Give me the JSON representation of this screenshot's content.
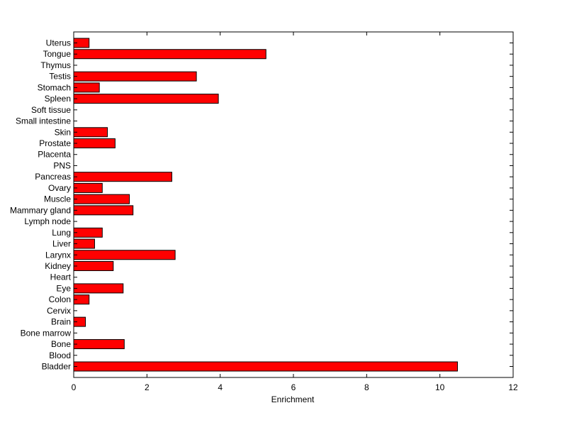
{
  "chart_data": {
    "type": "bar",
    "orientation": "horizontal",
    "categories": [
      "Uterus",
      "Tongue",
      "Thymus",
      "Testis",
      "Stomach",
      "Spleen",
      "Soft tissue",
      "Small intestine",
      "Skin",
      "Prostate",
      "Placenta",
      "PNS",
      "Pancreas",
      "Ovary",
      "Muscle",
      "Mammary gland",
      "Lymph node",
      "Lung",
      "Liver",
      "Larynx",
      "Kidney",
      "Heart",
      "Eye",
      "Colon",
      "Cervix",
      "Brain",
      "Bone marrow",
      "Bone",
      "Blood",
      "Bladder"
    ],
    "values": [
      0.42,
      5.25,
      0,
      3.35,
      0.7,
      3.95,
      0,
      0,
      0.92,
      1.13,
      0,
      0,
      2.68,
      0.78,
      1.52,
      1.62,
      0,
      0.78,
      0.57,
      2.77,
      1.08,
      0,
      1.35,
      0.42,
      0,
      0.32,
      0,
      1.38,
      0,
      10.48
    ],
    "xlabel": "Enrichment",
    "ylabel": "",
    "title": "",
    "xlim": [
      0,
      12
    ],
    "xticks": [
      0,
      2,
      4,
      6,
      8,
      10,
      12
    ],
    "bar_color": "#ff0000",
    "grid": false
  }
}
